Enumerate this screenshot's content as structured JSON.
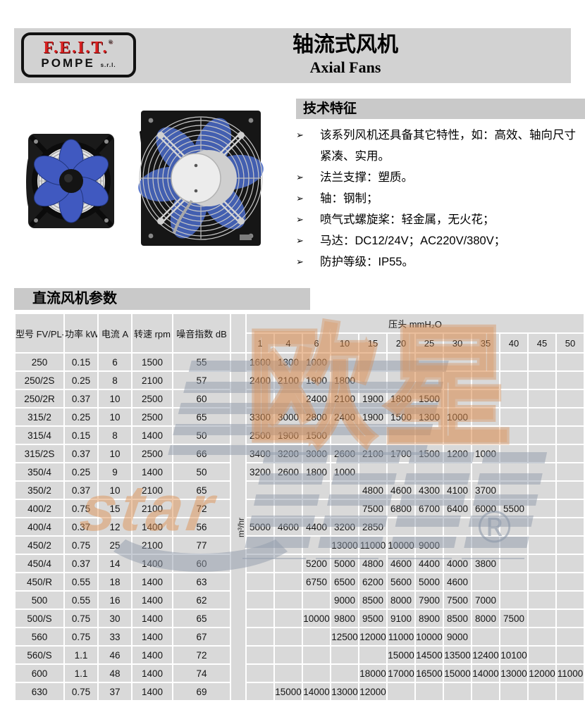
{
  "header": {
    "logo_line1": "F.E.I.T.",
    "logo_reg": "®",
    "logo_line2": "POMPE",
    "logo_suffix": "s.r.l.",
    "title_zh": "轴流式风机",
    "title_en": "Axial Fans"
  },
  "features": {
    "title": "技术特征",
    "bullet": "➢",
    "items": [
      "该系列风机还具备其它特性，如：高效、轴向尺寸紧凑、实用。",
      "法兰支撑：塑质。",
      "轴：钢制；",
      "喷气式螺旋桨：轻金属，无火花；",
      "马达：DC12/24V；AC220V/380V；",
      "防护等级：IP55。"
    ]
  },
  "section": {
    "title": "直流风机参数"
  },
  "table": {
    "col_headers": [
      "型号 FV/PL-",
      "功率 kW",
      "电流 A",
      "转速 rpm",
      "噪音指数 dB"
    ],
    "pressure_header": "压头 mmH₂O",
    "pressure_cols": [
      "1",
      "4",
      "6",
      "10",
      "15",
      "20",
      "25",
      "30",
      "35",
      "40",
      "45",
      "50"
    ],
    "flow_unit": "m³/hr",
    "rows": [
      {
        "model": "250",
        "power": "0.15",
        "current": "6",
        "rpm": "1500",
        "noise": "55",
        "pressures": [
          "1600",
          "1300",
          "1000",
          "",
          "",
          "",
          "",
          "",
          "",
          "",
          "",
          ""
        ]
      },
      {
        "model": "250/2S",
        "power": "0.25",
        "current": "8",
        "rpm": "2100",
        "noise": "57",
        "pressures": [
          "2400",
          "2100",
          "1900",
          "1800",
          "",
          "",
          "",
          "",
          "",
          "",
          "",
          ""
        ]
      },
      {
        "model": "250/2R",
        "power": "0.37",
        "current": "10",
        "rpm": "2500",
        "noise": "60",
        "pressures": [
          "",
          "",
          "2400",
          "2100",
          "1900",
          "1800",
          "1500",
          "",
          "",
          "",
          "",
          ""
        ]
      },
      {
        "model": "315/2",
        "power": "0.25",
        "current": "10",
        "rpm": "2500",
        "noise": "65",
        "pressures": [
          "3300",
          "3000",
          "2800",
          "2400",
          "1900",
          "1500",
          "1300",
          "1000",
          "",
          "",
          "",
          ""
        ]
      },
      {
        "model": "315/4",
        "power": "0.15",
        "current": "8",
        "rpm": "1400",
        "noise": "50",
        "pressures": [
          "2500",
          "1900",
          "1500",
          "",
          "",
          "",
          "",
          "",
          "",
          "",
          "",
          ""
        ]
      },
      {
        "model": "315/2S",
        "power": "0.37",
        "current": "10",
        "rpm": "2500",
        "noise": "66",
        "pressures": [
          "3400",
          "3200",
          "3000",
          "2600",
          "2100",
          "1700",
          "1500",
          "1200",
          "1000",
          "",
          "",
          ""
        ]
      },
      {
        "model": "350/4",
        "power": "0.25",
        "current": "9",
        "rpm": "1400",
        "noise": "50",
        "pressures": [
          "3200",
          "2600",
          "1800",
          "1000",
          "",
          "",
          "",
          "",
          "",
          "",
          "",
          ""
        ]
      },
      {
        "model": "350/2",
        "power": "0.37",
        "current": "10",
        "rpm": "2100",
        "noise": "65",
        "pressures": [
          "",
          "",
          "",
          "",
          "4800",
          "4600",
          "4300",
          "4100",
          "3700",
          "",
          "",
          ""
        ]
      },
      {
        "model": "400/2",
        "power": "0.75",
        "current": "15",
        "rpm": "2100",
        "noise": "72",
        "pressures": [
          "",
          "",
          "",
          "",
          "7500",
          "6800",
          "6700",
          "6400",
          "6000",
          "5500",
          "",
          ""
        ]
      },
      {
        "model": "400/4",
        "power": "0.37",
        "current": "12",
        "rpm": "1400",
        "noise": "56",
        "pressures": [
          "5000",
          "4600",
          "4400",
          "3200",
          "2850",
          "",
          "",
          "",
          "",
          "",
          "",
          ""
        ]
      },
      {
        "model": "450/2",
        "power": "0.75",
        "current": "25",
        "rpm": "2100",
        "noise": "77",
        "pressures": [
          "",
          "",
          "",
          "13000",
          "11000",
          "10000",
          "9000",
          "",
          "",
          "",
          "",
          ""
        ]
      },
      {
        "model": "450/4",
        "power": "0.37",
        "current": "14",
        "rpm": "1400",
        "noise": "60",
        "pressures": [
          "",
          "",
          "5200",
          "5000",
          "4800",
          "4600",
          "4400",
          "4000",
          "3800",
          "",
          "",
          ""
        ]
      },
      {
        "model": "450/R",
        "power": "0.55",
        "current": "18",
        "rpm": "1400",
        "noise": "63",
        "pressures": [
          "",
          "",
          "6750",
          "6500",
          "6200",
          "5600",
          "5000",
          "4600",
          "",
          "",
          "",
          ""
        ]
      },
      {
        "model": "500",
        "power": "0.55",
        "current": "16",
        "rpm": "1400",
        "noise": "62",
        "pressures": [
          "",
          "",
          "",
          "9000",
          "8500",
          "8000",
          "7900",
          "7500",
          "7000",
          "",
          "",
          ""
        ]
      },
      {
        "model": "500/S",
        "power": "0.75",
        "current": "30",
        "rpm": "1400",
        "noise": "65",
        "pressures": [
          "",
          "",
          "10000",
          "9800",
          "9500",
          "9100",
          "8900",
          "8500",
          "8000",
          "7500",
          "",
          ""
        ]
      },
      {
        "model": "560",
        "power": "0.75",
        "current": "33",
        "rpm": "1400",
        "noise": "67",
        "pressures": [
          "",
          "",
          "",
          "12500",
          "12000",
          "11000",
          "10000",
          "9000",
          "",
          "",
          "",
          ""
        ]
      },
      {
        "model": "560/S",
        "power": "1.1",
        "current": "46",
        "rpm": "1400",
        "noise": "72",
        "pressures": [
          "",
          "",
          "",
          "",
          "",
          "15000",
          "14500",
          "13500",
          "12400",
          "10100",
          "",
          ""
        ]
      },
      {
        "model": "600",
        "power": "1.1",
        "current": "48",
        "rpm": "1400",
        "noise": "74",
        "pressures": [
          "",
          "",
          "",
          "",
          "18000",
          "17000",
          "16500",
          "15000",
          "14000",
          "13000",
          "12000",
          "11000"
        ]
      },
      {
        "model": "630",
        "power": "0.75",
        "current": "37",
        "rpm": "1400",
        "noise": "69",
        "pressures": [
          "",
          "15000",
          "14000",
          "13000",
          "12000",
          "",
          "",
          "",
          "",
          "",
          "",
          ""
        ]
      }
    ]
  },
  "watermark": {
    "brand": "欧星",
    "star": "star",
    "reg": "®"
  },
  "colors": {
    "header_bar": "#d2d2d2",
    "section_bar": "#c9c9c9",
    "cell_bg": "#d9d9d9",
    "logo_red": "#d92121",
    "fan_blue": "#4059c0",
    "watermark_orange": "#dd9458",
    "watermark_gray": "#919cac"
  }
}
